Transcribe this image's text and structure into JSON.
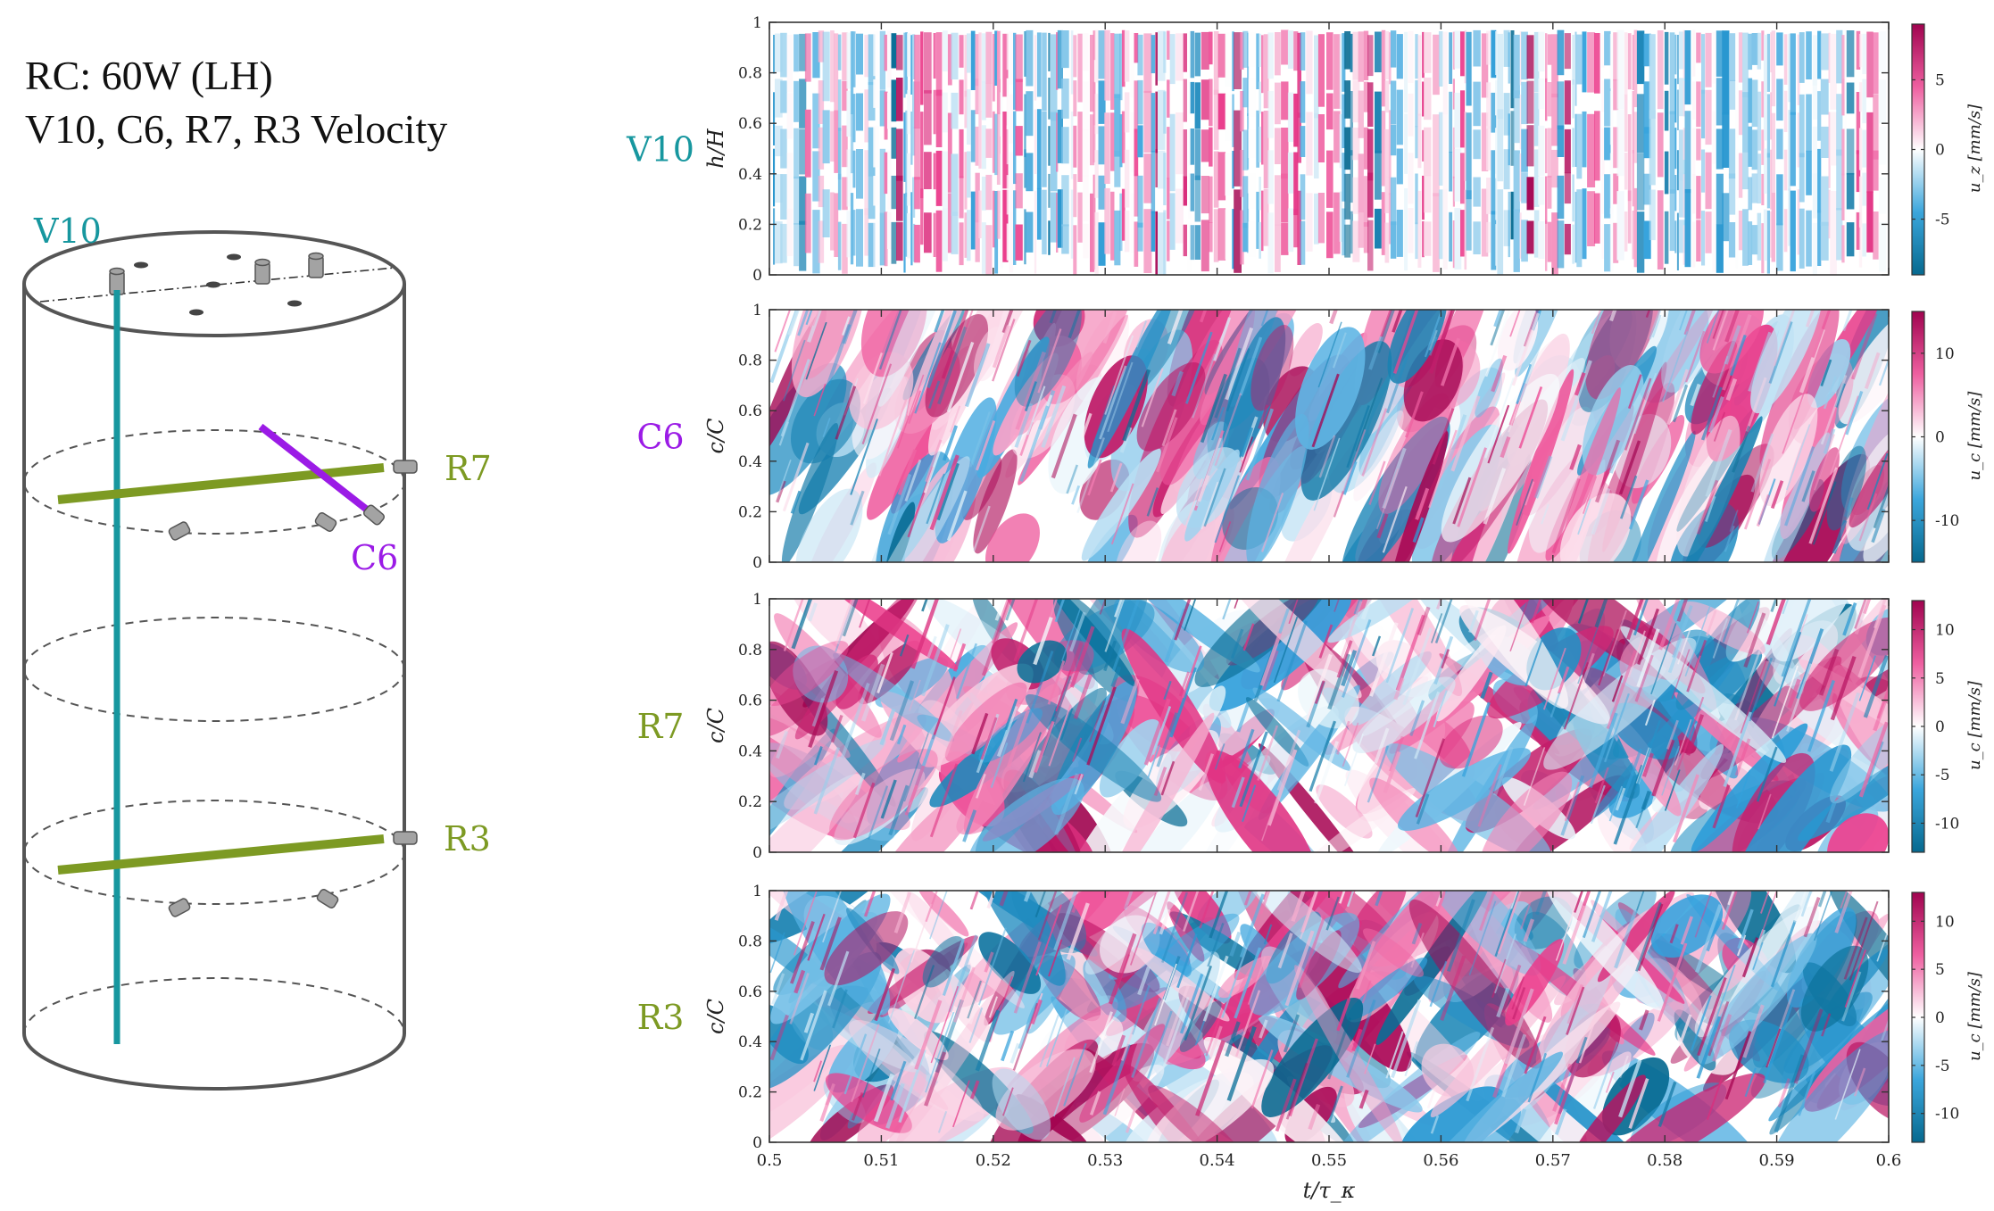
{
  "header": {
    "line1": "RC: 60W (LH)",
    "line2": "V10, C6, R7, R3 Velocity"
  },
  "schematic": {
    "labels": {
      "V10": "V10",
      "R7": "R7",
      "C6": "C6",
      "R3": "R3"
    },
    "colors": {
      "V10": "#17979f",
      "C6": "#9b1be6",
      "R7": "#7d9a23",
      "R3": "#7d9a23",
      "outline": "#555555",
      "sensor": "#9a9a9a"
    }
  },
  "chart_data": [
    {
      "type": "heatmap",
      "name": "V10",
      "label_color": "#17979f",
      "ylabel": "h/H",
      "xlim": [
        0.5,
        0.6
      ],
      "ylim": [
        0,
        1
      ],
      "yticks": [
        "0",
        "0.2",
        "0.4",
        "0.6",
        "0.8",
        "1"
      ],
      "colorbar": {
        "label": "u_z [mm/s]",
        "ticks": [
          "-5",
          "0",
          "5"
        ],
        "range": [
          -9,
          9
        ]
      },
      "texture": "vertical-streaks"
    },
    {
      "type": "heatmap",
      "name": "C6",
      "label_color": "#9b1be6",
      "ylabel": "c/C",
      "xlim": [
        0.5,
        0.6
      ],
      "ylim": [
        0,
        1
      ],
      "yticks": [
        "0",
        "0.2",
        "0.4",
        "0.6",
        "0.8",
        "1"
      ],
      "colorbar": {
        "label": "u_c [mm/s]",
        "ticks": [
          "-10",
          "0",
          "10"
        ],
        "range": [
          -15,
          15
        ]
      },
      "texture": "slanted-plumes"
    },
    {
      "type": "heatmap",
      "name": "R7",
      "label_color": "#7d9a23",
      "ylabel": "c/C",
      "xlim": [
        0.5,
        0.6
      ],
      "ylim": [
        0,
        1
      ],
      "yticks": [
        "0",
        "0.2",
        "0.4",
        "0.6",
        "0.8",
        "1"
      ],
      "colorbar": {
        "label": "u_c [mm/s]",
        "ticks": [
          "-10",
          "-5",
          "0",
          "5",
          "10"
        ],
        "range": [
          -13,
          13
        ]
      },
      "texture": "diagonal-bands"
    },
    {
      "type": "heatmap",
      "name": "R3",
      "label_color": "#7d9a23",
      "ylabel": "c/C",
      "xlim": [
        0.5,
        0.6
      ],
      "ylim": [
        0,
        1
      ],
      "yticks": [
        "0",
        "0.2",
        "0.4",
        "0.6",
        "0.8",
        "1"
      ],
      "colorbar": {
        "label": "u_c [mm/s]",
        "ticks": [
          "-10",
          "-5",
          "0",
          "5",
          "10"
        ],
        "range": [
          -13,
          13
        ]
      },
      "texture": "diagonal-bands",
      "xlabel": "t/τ_κ",
      "xticks": [
        "0.5",
        "0.51",
        "0.52",
        "0.53",
        "0.54",
        "0.55",
        "0.56",
        "0.57",
        "0.58",
        "0.59",
        "0.6"
      ]
    }
  ]
}
